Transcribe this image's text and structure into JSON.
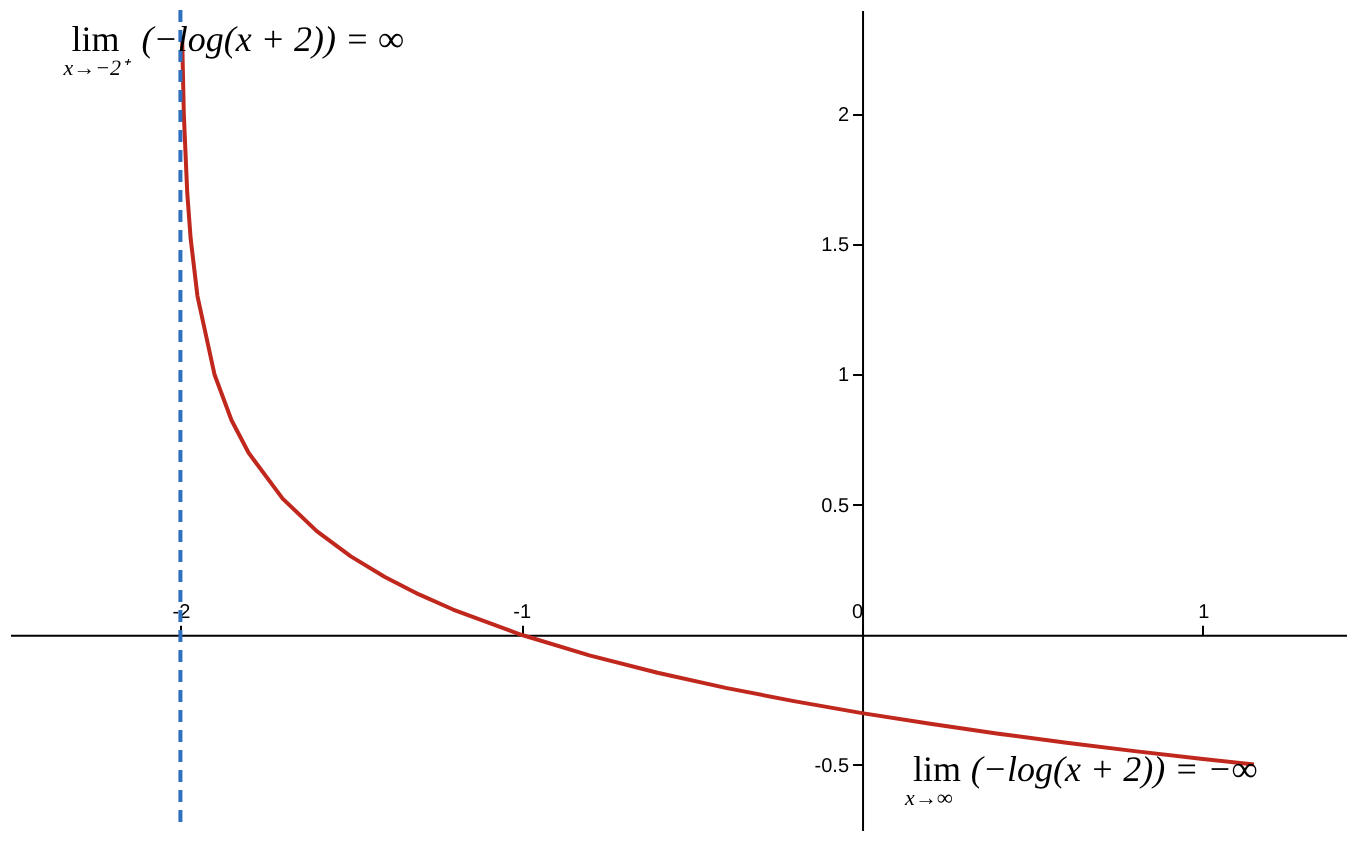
{
  "chart_data": {
    "type": "line",
    "x": [
      -1.995,
      -1.99,
      -1.98,
      -1.97,
      -1.95,
      -1.9,
      -1.85,
      -1.8,
      -1.7,
      -1.6,
      -1.5,
      -1.4,
      -1.3,
      -1.2,
      -1.0,
      -0.8,
      -0.6,
      -0.4,
      -0.2,
      0,
      0.2,
      0.4,
      0.6,
      0.8,
      1.0,
      1.15
    ],
    "series": [
      {
        "color": "#c0281e",
        "values": [
          2.301,
          2.0,
          1.699,
          1.523,
          1.301,
          1.0,
          0.824,
          0.699,
          0.523,
          0.398,
          0.301,
          0.222,
          0.155,
          0.097,
          0.0,
          -0.079,
          -0.146,
          -0.204,
          -0.255,
          -0.301,
          -0.342,
          -0.38,
          -0.415,
          -0.447,
          -0.477,
          -0.498
        ]
      }
    ],
    "xlim": [
      -2.5,
      1.42
    ],
    "ylim": [
      -0.75,
      2.4
    ],
    "xticks": [
      -2,
      -1,
      0,
      1
    ],
    "yticks": [
      -0.5,
      0.5,
      1,
      1.5,
      2
    ],
    "ref_lines": [
      {
        "axis": "x",
        "value": -2,
        "color": "#2e6fc0",
        "line_style": "dashed"
      }
    ],
    "annotations": [
      "lim$_{x→−2⁺}$(−log(x + 2)) = ∞",
      "lim$_{x→∞}$(−log(x + 2)) = −∞"
    ],
    "grid": false,
    "marker": "none",
    "line_style": "solid"
  }
}
